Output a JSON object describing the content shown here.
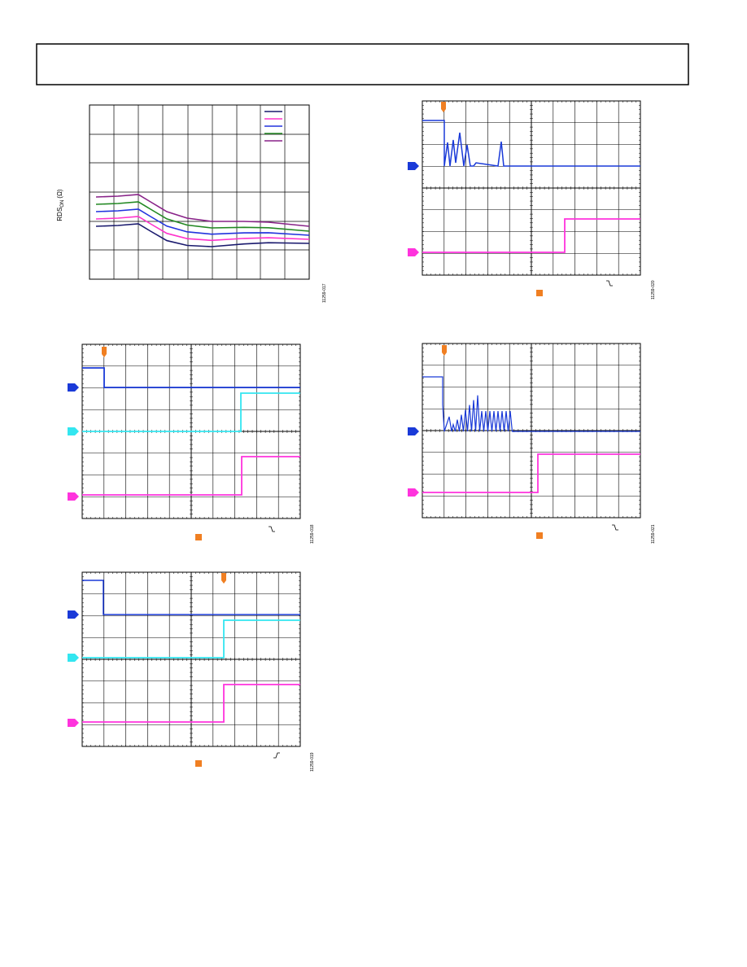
{
  "figures": [
    {
      "y_label": {
        "main": "RDS",
        "sub": "ON",
        "unit": "(Ω)"
      },
      "id": "11259-017"
    },
    {
      "id": "11259-020"
    },
    {
      "id": "11259-018"
    },
    {
      "id": "11259-021"
    },
    {
      "id": "11259-019"
    }
  ]
}
